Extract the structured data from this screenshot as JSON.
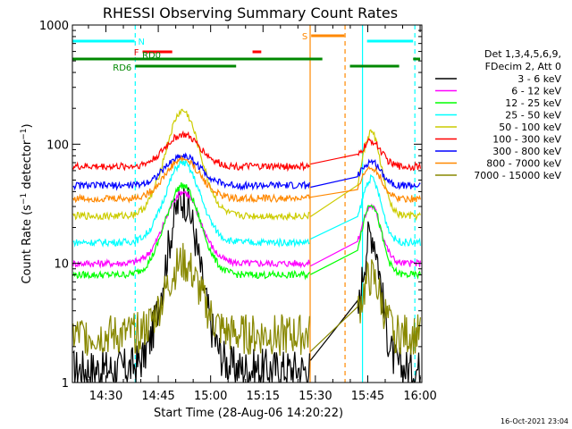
{
  "chart_data": {
    "type": "line",
    "title": "RHESSI Observing Summary Count Rates",
    "xlabel": "Start Time (28-Aug-06 14:20:22)",
    "ylabel": "Count Rate (s⁻¹ detector⁻¹)",
    "ylabel_main": "Count Rate (s",
    "ylabel_sup1": "−1",
    "ylabel_mid": " detector",
    "ylabel_sup2": "−1",
    "ylabel_end": ")",
    "y_scale": "log",
    "ylim": [
      1,
      1000
    ],
    "xlim_minutes": [
      20.4,
      120.5
    ],
    "x_ticks": [
      {
        "t": 30,
        "label": "14:30"
      },
      {
        "t": 45,
        "label": "14:45"
      },
      {
        "t": 60,
        "label": "15:00"
      },
      {
        "t": 75,
        "label": "15:15"
      },
      {
        "t": 90,
        "label": "15:30"
      },
      {
        "t": 105,
        "label": "15:45"
      },
      {
        "t": 120,
        "label": "16:00"
      }
    ],
    "y_ticks": [
      {
        "v": 1,
        "label": "1"
      },
      {
        "v": 10,
        "label": "10"
      },
      {
        "v": 100,
        "label": "100"
      },
      {
        "v": 1000,
        "label": "1000"
      }
    ],
    "footer_timestamp": "16-Oct-2021 23:04",
    "legend_header": [
      "Det 1,3,4,5,6,9,",
      "FDecim 2, Att 0"
    ],
    "series": [
      {
        "name": "3 - 6 keV",
        "color": "#000000",
        "base": 1.3,
        "peak": 35
      },
      {
        "name": "6 - 12 keV",
        "color": "#ff00ff",
        "base": 10,
        "peak": 40
      },
      {
        "name": "12 - 25 keV",
        "color": "#00ff00",
        "base": 8,
        "peak": 45
      },
      {
        "name": "25 - 50 keV",
        "color": "#00ffff",
        "base": 15,
        "peak": 70
      },
      {
        "name": "50 - 100 keV",
        "color": "#cccc00",
        "base": 25,
        "peak": 190
      },
      {
        "name": "100 - 300 keV",
        "color": "#ff0000",
        "base": 65,
        "peak": 120
      },
      {
        "name": "300 - 800 keV",
        "color": "#0000ff",
        "base": 45,
        "peak": 80
      },
      {
        "name": "800 - 7000 keV",
        "color": "#ff8800",
        "base": 35,
        "peak": 75
      },
      {
        "name": "7000 - 15000 keV",
        "color": "#888800",
        "base": 2.5,
        "peak": 10
      }
    ],
    "flag_bars": [
      {
        "label": "N",
        "color": "#00ffff",
        "y": 46,
        "segments": [
          [
            20.4,
            38.2
          ],
          [
            104.8,
            118.0
          ]
        ]
      },
      {
        "label": "F",
        "color": "#ff0000",
        "y": 58,
        "segments": [
          [
            40.5,
            49.0
          ],
          [
            72.0,
            74.5
          ]
        ]
      },
      {
        "label": "RD0",
        "color": "#008800",
        "y": 66,
        "segments": [
          [
            20.4,
            92.0
          ],
          [
            118.0,
            120.0
          ]
        ]
      },
      {
        "label": "RD6",
        "color": "#008800",
        "y": 74,
        "segments": [
          [
            38.4,
            67.3
          ],
          [
            99.9,
            114.0
          ]
        ]
      },
      {
        "label": "S",
        "color": "#ff8800",
        "y": 40,
        "segments": [
          [
            88.8,
            98.3
          ]
        ]
      }
    ],
    "vertical_markers": [
      {
        "t": 38.4,
        "color": "#00ffff",
        "style": "dashed"
      },
      {
        "t": 88.5,
        "color": "#ff8800",
        "style": "solid"
      },
      {
        "t": 98.5,
        "color": "#ff8800",
        "style": "dashed"
      },
      {
        "t": 103.5,
        "color": "#00ffff",
        "style": "solid"
      },
      {
        "t": 118.5,
        "color": "#00ffff",
        "style": "dashed"
      }
    ],
    "data_gap_minutes": [
      88.6,
      102.0
    ]
  }
}
